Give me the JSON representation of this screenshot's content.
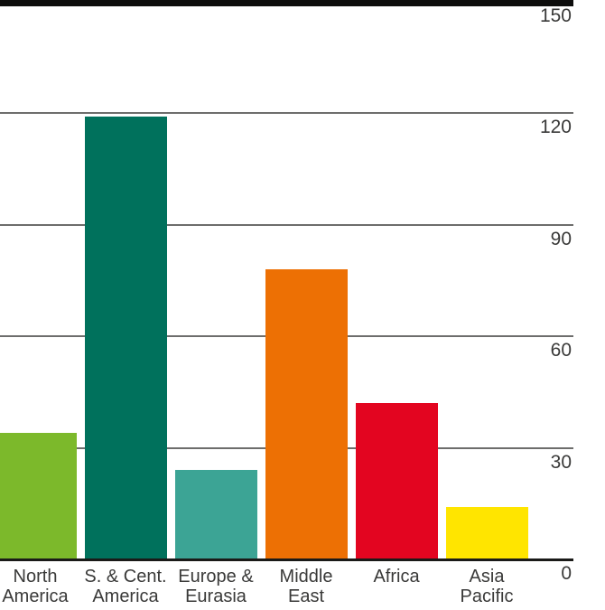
{
  "chart_data": {
    "type": "bar",
    "title": "",
    "xlabel": "",
    "ylabel": "",
    "categories": [
      "North America",
      "S. & Cent. America",
      "Europe & Eurasia",
      "Middle East",
      "Africa",
      "Asia Pacific"
    ],
    "category_label_lines": [
      [
        "North",
        "America"
      ],
      [
        "S. & Cent.",
        "America"
      ],
      [
        "Europe &",
        "Eurasia"
      ],
      [
        "Middle",
        "East"
      ],
      [
        "Africa"
      ],
      [
        "Asia",
        "Pacific"
      ]
    ],
    "values": [
      34,
      119,
      24,
      78,
      42,
      14
    ],
    "bar_colors": [
      "#7cb92b",
      "#00715c",
      "#3ca495",
      "#ed7004",
      "#e30520",
      "#ffe500"
    ],
    "ylim": [
      0,
      150
    ],
    "yticks": [
      150,
      120,
      90,
      60,
      30,
      0
    ],
    "y_axis_side": "right",
    "grid": "horizontal",
    "legend_position": "none",
    "colors": {
      "grid_line": "#6d6d6c",
      "axis_line": "#1a1a18",
      "top_border": "#0d0d0c",
      "tick_label_text": "#3a3a39",
      "background": "#ffffff"
    }
  }
}
